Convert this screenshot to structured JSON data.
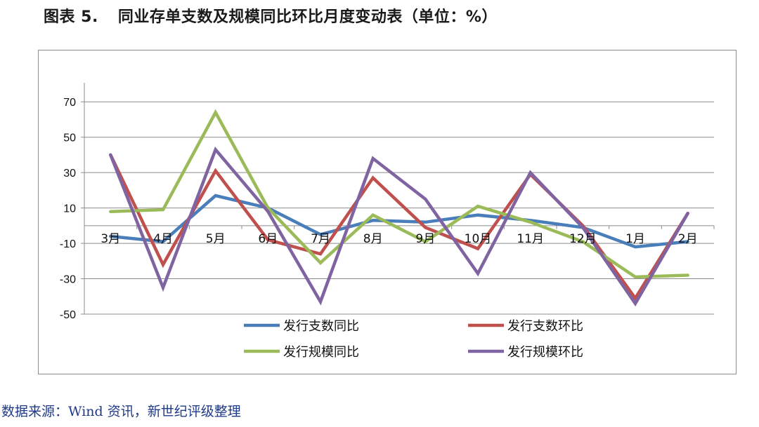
{
  "title": {
    "figure_no": "图表 5.",
    "text": "同业存单支数及规模同比环比月度变动表（单位：%）"
  },
  "source": "数据来源：Wind 资讯，新世纪评级整理",
  "chart_data": {
    "type": "line",
    "categories": [
      "3月",
      "4月",
      "5月",
      "6月",
      "7月",
      "8月",
      "9月",
      "10月",
      "11月",
      "12月",
      "1月",
      "2月"
    ],
    "ylim": [
      -50,
      80
    ],
    "yticks": [
      -50,
      -30,
      -10,
      10,
      30,
      50,
      70
    ],
    "grid": true,
    "legend_position": "bottom",
    "series": [
      {
        "name": "发行支数同比",
        "color": "#4a7ebb",
        "values": [
          -6,
          -9,
          17,
          10,
          -5,
          3,
          2,
          6,
          3,
          -1,
          -12,
          -9
        ]
      },
      {
        "name": "发行支数环比",
        "color": "#c0504d",
        "values": [
          40,
          -22,
          31,
          -8,
          -16,
          27,
          -1,
          -13,
          29,
          0,
          -41,
          7
        ]
      },
      {
        "name": "发行规模同比",
        "color": "#9bbb59",
        "values": [
          8,
          9,
          64,
          10,
          -21,
          6,
          -9,
          11,
          2,
          -9,
          -29,
          -28
        ]
      },
      {
        "name": "发行规模环比",
        "color": "#8064a2",
        "values": [
          40,
          -35,
          43,
          8,
          -43,
          38,
          15,
          -27,
          30,
          -1,
          -44,
          7
        ]
      }
    ]
  }
}
